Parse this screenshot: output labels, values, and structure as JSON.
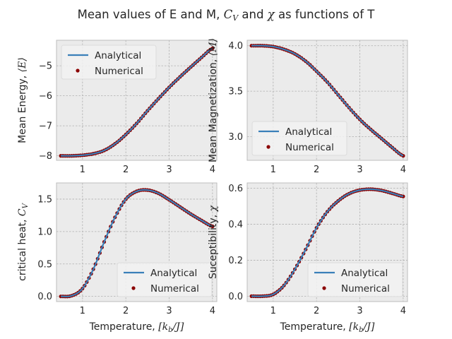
{
  "figure": {
    "title": "Mean values of E and M, C_V and χ as functions of T",
    "title_parts": {
      "a": "Mean values of E and M, ",
      "cv": "C",
      "cvsub": "V",
      "b": " and ",
      "chi": "χ",
      "c": " as functions of T"
    }
  },
  "colors": {
    "analytical": "#3a80b9",
    "numerical": "#8b0000",
    "axes_bg": "#ebebeb",
    "grid": "#b0b0b0",
    "spine": "#bcbcbc"
  },
  "legend": {
    "analytical": "Analytical",
    "numerical": "Numerical"
  },
  "chart_data": [
    {
      "type": "line",
      "ylabel": "Mean Energy, ⟨E⟩",
      "ylabel_parts": {
        "text": "Mean Energy, ",
        "math": "⟨E⟩"
      },
      "xlabel": "",
      "xlim": [
        0.4,
        4.1
      ],
      "ylim": [
        -8.15,
        -4.15
      ],
      "xticks": [
        1,
        2,
        3,
        4
      ],
      "yticks": [
        -8,
        -7,
        -6,
        -5
      ],
      "grid": true,
      "legend_loc": "upper left",
      "series": [
        {
          "name": "Analytical",
          "x": [
            0.5,
            0.75,
            1.0,
            1.25,
            1.5,
            1.75,
            2.0,
            2.25,
            2.5,
            2.75,
            3.0,
            3.25,
            3.5,
            3.75,
            4.0
          ],
          "y": [
            -8.0,
            -8.0,
            -7.98,
            -7.93,
            -7.82,
            -7.6,
            -7.29,
            -6.92,
            -6.5,
            -6.1,
            -5.72,
            -5.37,
            -5.04,
            -4.72,
            -4.42
          ]
        },
        {
          "name": "Numerical",
          "x": [
            0.5,
            0.75,
            1.0,
            1.25,
            1.5,
            1.75,
            2.0,
            2.25,
            2.5,
            2.75,
            3.0,
            3.25,
            3.5,
            3.75,
            4.0
          ],
          "y": [
            -8.0,
            -8.0,
            -7.98,
            -7.93,
            -7.82,
            -7.6,
            -7.29,
            -6.92,
            -6.5,
            -6.1,
            -5.72,
            -5.37,
            -5.04,
            -4.72,
            -4.42
          ]
        }
      ]
    },
    {
      "type": "line",
      "ylabel": "Mean Magnetization, ⟨M⟩",
      "ylabel_parts": {
        "text": "Mean Magnetization, ",
        "math": "⟨M⟩"
      },
      "xlabel": "",
      "xlim": [
        0.4,
        4.1
      ],
      "ylim": [
        2.74,
        4.06
      ],
      "xticks": [
        1,
        2,
        3,
        4
      ],
      "yticks": [
        3.0,
        3.5,
        4.0
      ],
      "grid": true,
      "legend_loc": "lower left",
      "series": [
        {
          "name": "Analytical",
          "x": [
            0.5,
            0.75,
            1.0,
            1.25,
            1.5,
            1.75,
            2.0,
            2.25,
            2.5,
            2.75,
            3.0,
            3.25,
            3.5,
            3.75,
            4.0
          ],
          "y": [
            4.0,
            4.0,
            3.99,
            3.96,
            3.91,
            3.83,
            3.72,
            3.6,
            3.46,
            3.32,
            3.19,
            3.08,
            2.98,
            2.88,
            2.79
          ]
        },
        {
          "name": "Numerical",
          "x": [
            0.5,
            0.75,
            1.0,
            1.25,
            1.5,
            1.75,
            2.0,
            2.25,
            2.5,
            2.75,
            3.0,
            3.25,
            3.5,
            3.75,
            4.0
          ],
          "y": [
            4.0,
            4.0,
            3.99,
            3.96,
            3.91,
            3.83,
            3.72,
            3.6,
            3.46,
            3.32,
            3.19,
            3.08,
            2.98,
            2.88,
            2.79
          ]
        }
      ]
    },
    {
      "type": "line",
      "ylabel": "critical heat, C_V",
      "ylabel_parts": {
        "text": "critical heat, ",
        "math": "C",
        "sub": "V"
      },
      "xlabel": "Temperature, [k_b/J]",
      "xlabel_parts": {
        "text": "Temperature, ",
        "math": "[k",
        "sub": "b",
        "math2": "/J]"
      },
      "xlim": [
        0.4,
        4.1
      ],
      "ylim": [
        -0.08,
        1.75
      ],
      "xticks": [
        1,
        2,
        3,
        4
      ],
      "yticks": [
        0.0,
        0.5,
        1.0,
        1.5
      ],
      "grid": true,
      "legend_loc": "lower right",
      "series": [
        {
          "name": "Analytical",
          "x": [
            0.5,
            0.75,
            1.0,
            1.25,
            1.5,
            1.75,
            2.0,
            2.25,
            2.5,
            2.75,
            3.0,
            3.25,
            3.5,
            3.75,
            4.0
          ],
          "y": [
            0.0,
            0.01,
            0.12,
            0.42,
            0.84,
            1.22,
            1.5,
            1.62,
            1.64,
            1.59,
            1.49,
            1.38,
            1.27,
            1.17,
            1.08
          ]
        },
        {
          "name": "Numerical",
          "x": [
            0.5,
            0.75,
            1.0,
            1.25,
            1.5,
            1.75,
            2.0,
            2.25,
            2.5,
            2.75,
            3.0,
            3.25,
            3.5,
            3.75,
            4.0
          ],
          "y": [
            0.0,
            0.01,
            0.12,
            0.42,
            0.84,
            1.22,
            1.5,
            1.62,
            1.64,
            1.59,
            1.49,
            1.38,
            1.27,
            1.17,
            1.08
          ]
        }
      ]
    },
    {
      "type": "line",
      "ylabel": "Suceptibility, χ",
      "ylabel_parts": {
        "text": "Suceptibility, ",
        "math": "χ"
      },
      "xlabel": "Temperature, [k_b/J]",
      "xlabel_parts": {
        "text": "Temperature, ",
        "math": "[k",
        "sub": "b",
        "math2": "/J]"
      },
      "xlim": [
        0.4,
        4.1
      ],
      "ylim": [
        -0.03,
        0.63
      ],
      "xticks": [
        1,
        2,
        3,
        4
      ],
      "yticks": [
        0.0,
        0.2,
        0.4,
        0.6
      ],
      "grid": true,
      "legend_loc": "lower right",
      "series": [
        {
          "name": "Analytical",
          "x": [
            0.5,
            0.75,
            1.0,
            1.25,
            1.5,
            1.75,
            2.0,
            2.25,
            2.5,
            2.75,
            3.0,
            3.25,
            3.5,
            3.75,
            4.0
          ],
          "y": [
            0.0,
            0.0,
            0.01,
            0.06,
            0.15,
            0.26,
            0.38,
            0.47,
            0.53,
            0.57,
            0.59,
            0.595,
            0.588,
            0.572,
            0.555
          ]
        },
        {
          "name": "Numerical",
          "x": [
            0.5,
            0.75,
            1.0,
            1.25,
            1.5,
            1.75,
            2.0,
            2.25,
            2.5,
            2.75,
            3.0,
            3.25,
            3.5,
            3.75,
            4.0
          ],
          "y": [
            0.0,
            0.0,
            0.01,
            0.06,
            0.15,
            0.26,
            0.38,
            0.47,
            0.53,
            0.57,
            0.59,
            0.595,
            0.588,
            0.572,
            0.555
          ]
        }
      ]
    }
  ]
}
